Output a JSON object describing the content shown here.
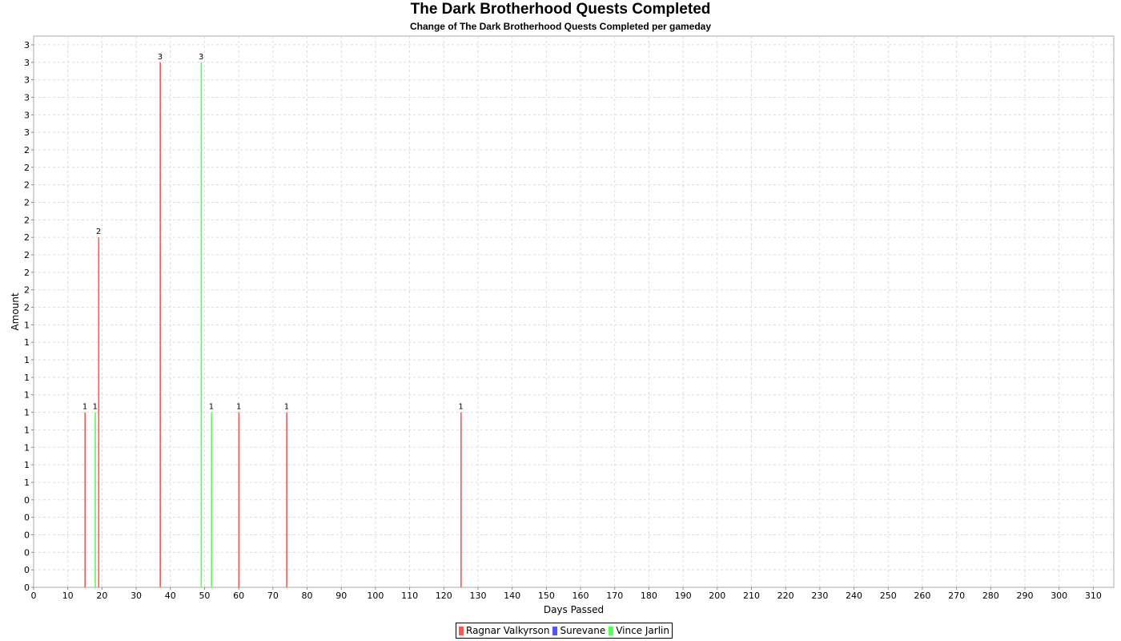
{
  "title": "The Dark Brotherhood Quests Completed",
  "subtitle": "Change of The Dark Brotherhood Quests Completed per gameday",
  "chart_data": {
    "type": "bar",
    "title": "The Dark Brotherhood Quests Completed",
    "subtitle": "Change of The Dark Brotherhood Quests Completed per gameday",
    "xlabel": "Days Passed",
    "ylabel": "Amount",
    "xlim": [
      0,
      316
    ],
    "ylim": [
      0,
      3.15
    ],
    "x_ticks": [
      0,
      10,
      20,
      30,
      40,
      50,
      60,
      70,
      80,
      90,
      100,
      110,
      120,
      130,
      140,
      150,
      160,
      170,
      180,
      190,
      200,
      210,
      220,
      230,
      240,
      250,
      260,
      270,
      280,
      290,
      300,
      310
    ],
    "y_tick_values": [
      0,
      0.1,
      0.2,
      0.3,
      0.4,
      0.5,
      0.6,
      0.7,
      0.8,
      0.9,
      1.0,
      1.1,
      1.2,
      1.3,
      1.4,
      1.5,
      1.6,
      1.7,
      1.8,
      1.9,
      2.0,
      2.1,
      2.2,
      2.3,
      2.4,
      2.5,
      2.6,
      2.7,
      2.8,
      2.9,
      3.0,
      3.1
    ],
    "y_tick_labels": [
      "0",
      "0",
      "0",
      "0",
      "0",
      "0",
      "1",
      "1",
      "1",
      "1",
      "1",
      "1",
      "1",
      "1",
      "1",
      "1",
      "2",
      "2",
      "2",
      "2",
      "2",
      "2",
      "2",
      "2",
      "2",
      "2",
      "3",
      "3",
      "3",
      "3",
      "3",
      "3"
    ],
    "grid": true,
    "legend_position": "bottom-center",
    "series": [
      {
        "name": "Ragnar Valkyrson",
        "color": "#ff5555",
        "points": [
          {
            "x": 15,
            "y": 1
          },
          {
            "x": 19,
            "y": 2
          },
          {
            "x": 37,
            "y": 3
          },
          {
            "x": 60,
            "y": 1
          },
          {
            "x": 74,
            "y": 1
          },
          {
            "x": 125,
            "y": 1
          }
        ]
      },
      {
        "name": "Surevane",
        "color": "#5555ff",
        "points": []
      },
      {
        "name": "Vince Jarlin",
        "color": "#55ff55",
        "points": [
          {
            "x": 18,
            "y": 1
          },
          {
            "x": 49,
            "y": 3
          },
          {
            "x": 52,
            "y": 1
          }
        ]
      }
    ]
  }
}
